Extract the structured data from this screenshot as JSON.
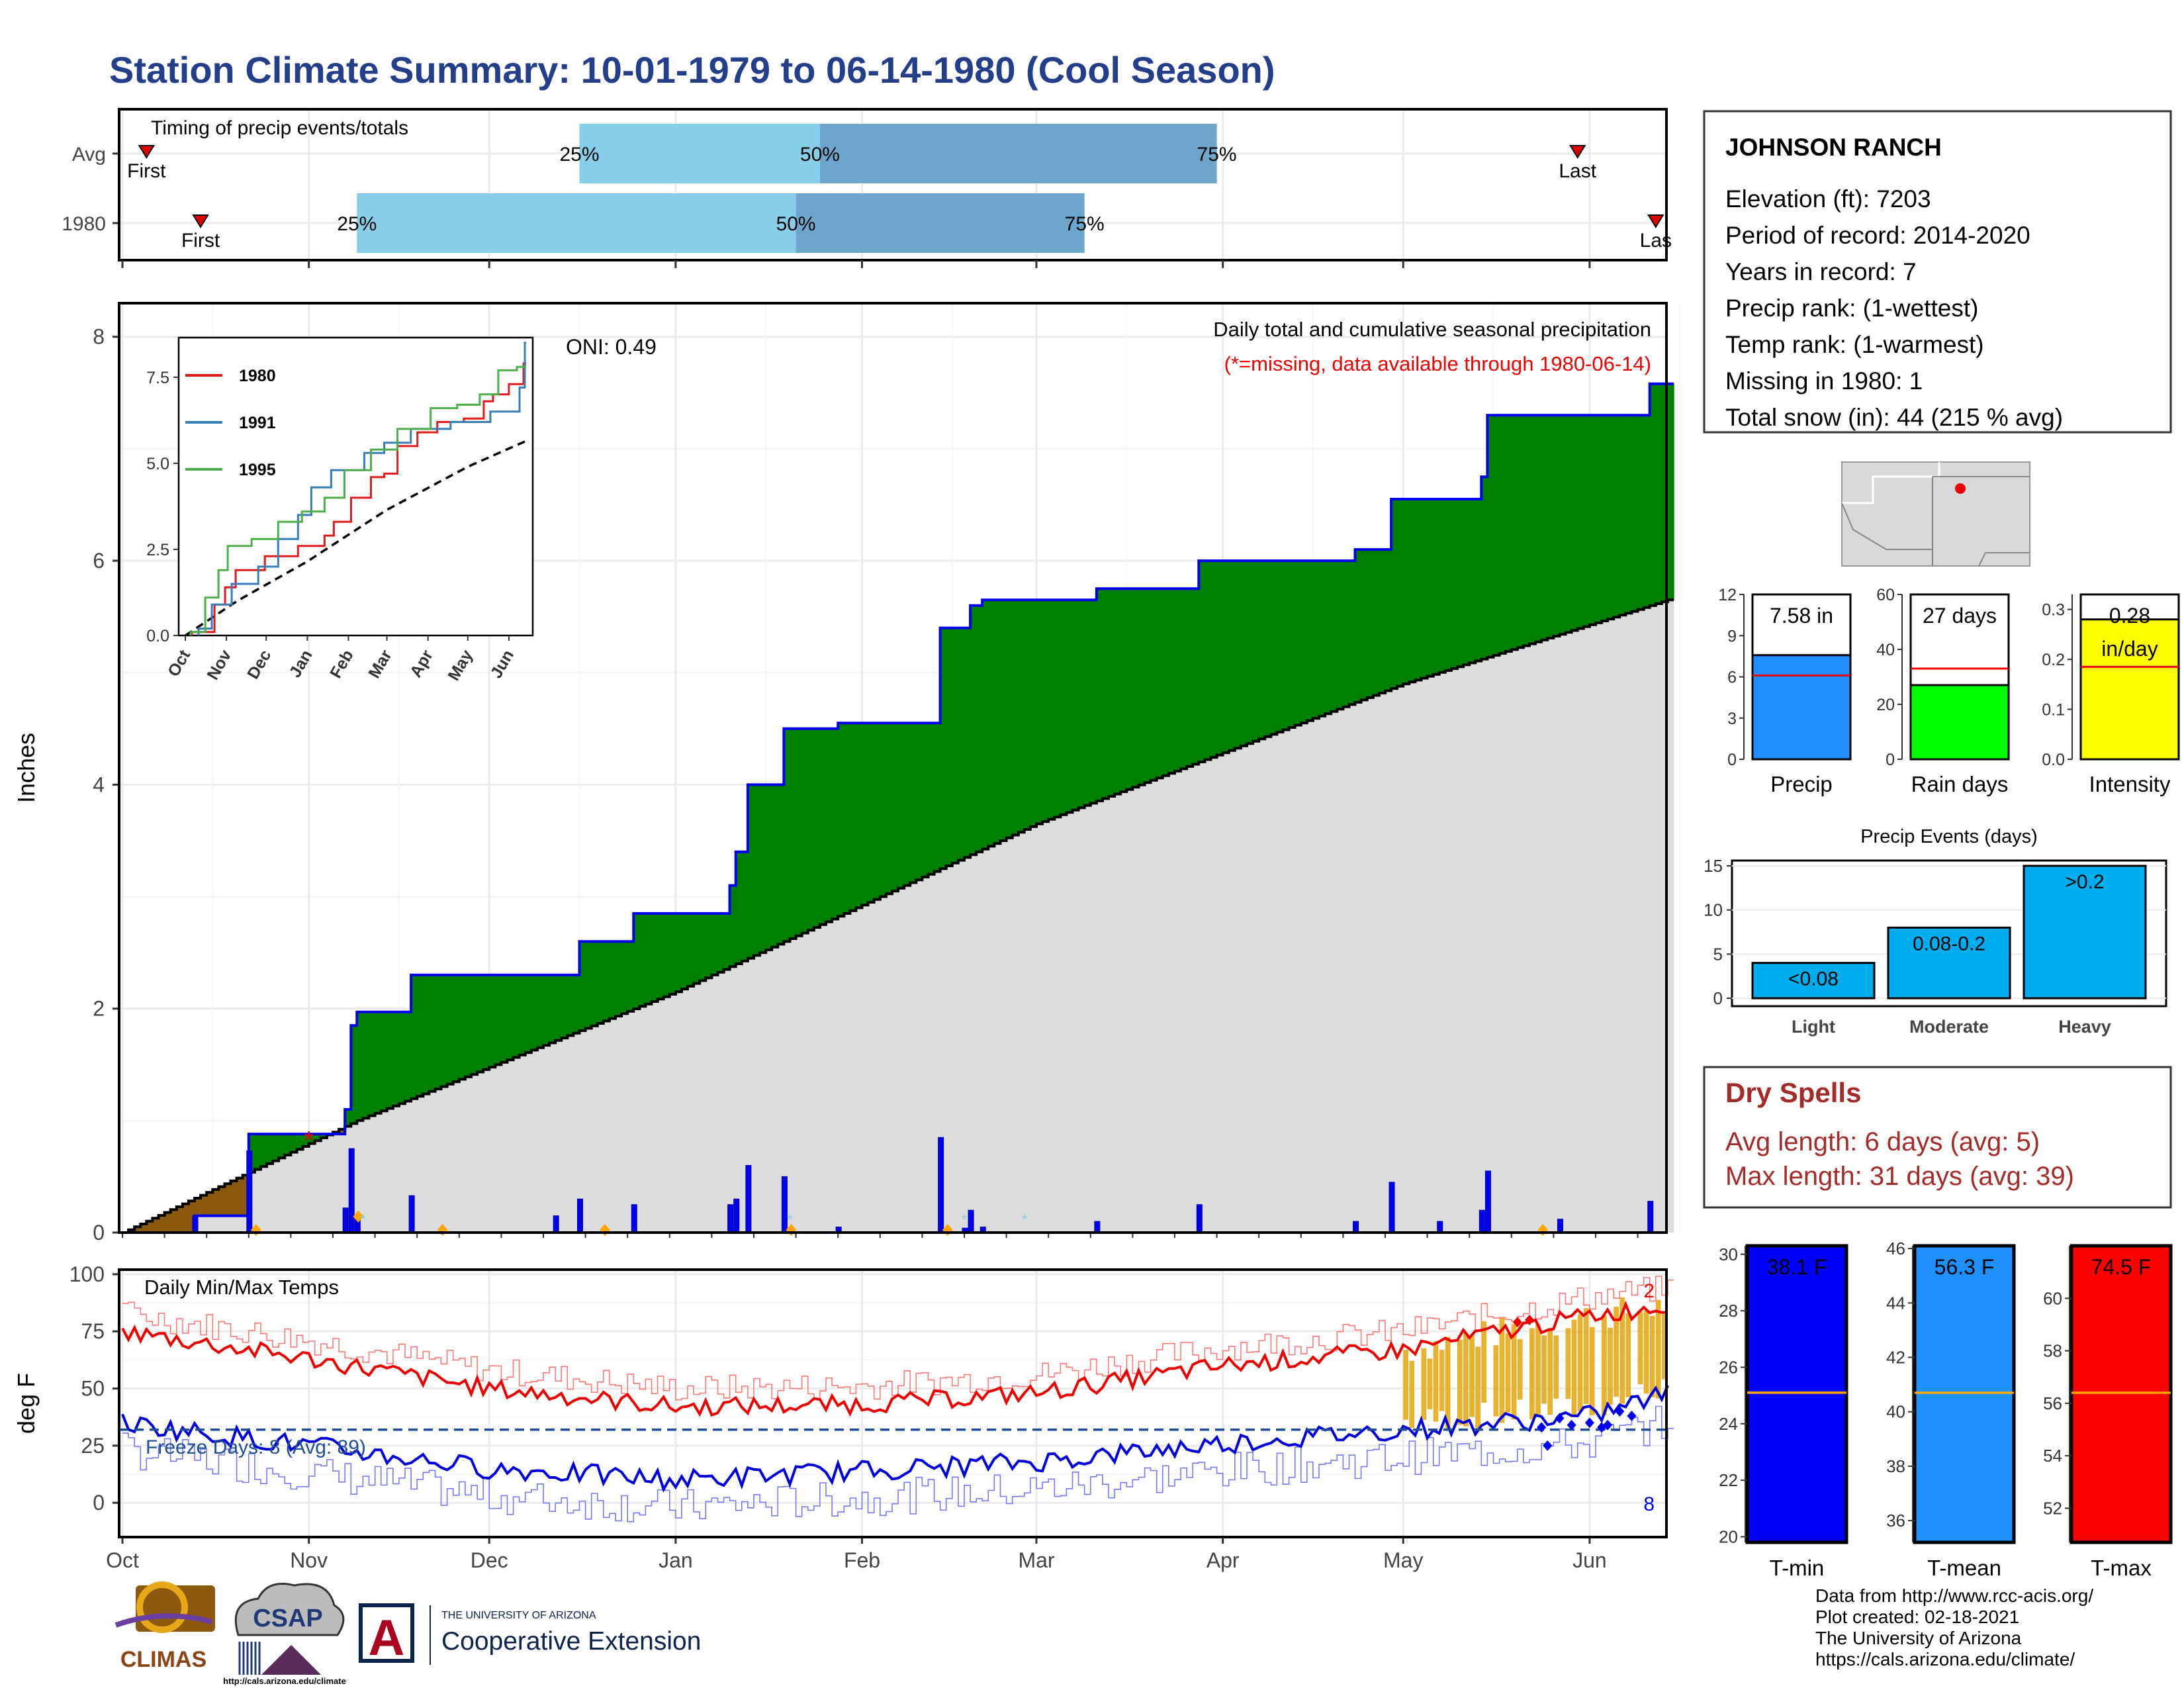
{
  "title": "Station Climate Summary: 10-01-1979 to 06-14-1980 (Cool Season)",
  "colors": {
    "title": "#233E8B",
    "dark_blue_bar": "#6CA6CD",
    "light_blue_bar": "#87CEEB",
    "green_fill": "#008000",
    "brown_fill": "#8B5A0F",
    "gray_fill": "#DDDDDD",
    "cum_line": "#0000EE",
    "red": "#EE0000",
    "dry_spells": "#A52A2A",
    "precip_bar": "#1E90FF",
    "rain_days_bar": "#00FF00",
    "intensity_bar": "#FFFF00",
    "events_bar": "#00AEEF",
    "tmin_bar": "#0000FF",
    "tmean_bar": "#1E90FF",
    "tmax_bar": "#FF0000",
    "orange": "#FFA500"
  },
  "timing": {
    "label": "Timing of precip events/totals",
    "rows": [
      {
        "name": "Avg",
        "first_label": "First",
        "last_label": "Last",
        "p25": "25%",
        "p50": "50%",
        "p75": "75%"
      },
      {
        "name": "1980",
        "first_label": "First",
        "last_label": "Las",
        "p25": "25%",
        "p50": "50%",
        "p75": "75%"
      }
    ]
  },
  "months": [
    "Oct",
    "Nov",
    "Dec",
    "Jan",
    "Feb",
    "Mar",
    "Apr",
    "May",
    "Jun"
  ],
  "main": {
    "ylabel": "Inches",
    "oni": "ONI: 0.49",
    "legend1": "Daily total and cumulative seasonal precipitation",
    "legend2": "(*=missing, data available through 1980-06-14)",
    "yticks": [
      "0",
      "2",
      "4",
      "6",
      "8"
    ]
  },
  "inset": {
    "legend": [
      "1980",
      "1991",
      "1995"
    ],
    "yticks": [
      "0.0",
      "2.5",
      "5.0",
      "7.5"
    ],
    "xticks": [
      "Oct",
      "Nov",
      "Dec",
      "Jan",
      "Feb",
      "Mar",
      "Apr",
      "May",
      "Jun"
    ]
  },
  "temps": {
    "label": "Daily Min/Max Temps",
    "ylabel": "deg F",
    "freeze": "Freeze Days: 8 (Avg: 89)",
    "yticks": [
      "0",
      "25",
      "50",
      "75",
      "100"
    ],
    "top_count": "2",
    "bottom_count": "8"
  },
  "station": {
    "name": "JOHNSON RANCH",
    "lines": [
      "Elevation (ft): 7203",
      "Period of record: 2014-2020",
      "Years in record: 7",
      "Precip rank:  (1-wettest)",
      "Temp rank:  (1-warmest)",
      "Missing in 1980: 1",
      "Total snow (in): 44 (215 % avg)"
    ]
  },
  "mini_bars": [
    {
      "label": "Precip",
      "value_text": "7.58 in",
      "value": 7.58,
      "avg": 6.1,
      "ymax": 12,
      "yticks": [
        "0",
        "3",
        "6",
        "9",
        "12"
      ]
    },
    {
      "label": "Rain days",
      "value_text": "27 days",
      "value": 27,
      "avg": 33,
      "ymax": 60,
      "yticks": [
        "0",
        "20",
        "40",
        "60"
      ]
    },
    {
      "label": "Intensity",
      "value_text": "0.28",
      "value_text2": "in/day",
      "value": 0.28,
      "avg": 0.185,
      "ymax": 0.33,
      "yticks": [
        "0.0",
        "0.1",
        "0.2",
        "0.3"
      ]
    }
  ],
  "events": {
    "title": "Precip Events (days)",
    "yticks": [
      "0",
      "5",
      "10",
      "15"
    ],
    "bars": [
      {
        "label": "Light",
        "text": "<0.08",
        "value": 4
      },
      {
        "label": "Moderate",
        "text": "0.08-0.2",
        "value": 8
      },
      {
        "label": "Heavy",
        "text": ">0.2",
        "value": 15
      }
    ]
  },
  "dry_spells": {
    "title": "Dry Spells",
    "avg": "Avg length: 6 days (avg: 5)",
    "max": "Max length: 31 days (avg: 39)"
  },
  "temp_bars": [
    {
      "label": "T-min",
      "text": "38.1 F",
      "avg": 25.1,
      "ymin": 19.8,
      "ymax": 30.3,
      "yticks": [
        "20",
        "22",
        "24",
        "26",
        "28",
        "30"
      ],
      "ytick_vals": [
        20,
        22,
        24,
        26,
        28,
        30
      ]
    },
    {
      "label": "T-mean",
      "text": "56.3 F",
      "avg": 40.7,
      "ymin": 35.2,
      "ymax": 46.1,
      "yticks": [
        "36",
        "38",
        "40",
        "42",
        "44",
        "46"
      ],
      "ytick_vals": [
        36,
        38,
        40,
        42,
        44,
        46
      ]
    },
    {
      "label": "T-max",
      "text": "74.5 F",
      "avg": 56.4,
      "ymin": 50.7,
      "ymax": 62.0,
      "yticks": [
        "52",
        "54",
        "56",
        "58",
        "60"
      ],
      "ytick_vals": [
        52,
        54,
        56,
        58,
        60
      ]
    }
  ],
  "credits": [
    "Data from http://www.rcc-acis.org/",
    "Plot created: 02-18-2021",
    "The University of Arizona",
    "https://cals.arizona.edu/climate/"
  ],
  "logos": {
    "climas": "CLIMAS",
    "csap": "CSAP",
    "csap_url": "http://cals.arizona.edu/climate",
    "ua_small": "THE UNIVERSITY OF ARIZONA",
    "ua_big": "Cooperative Extension"
  },
  "chart_data": [
    {
      "type": "bar",
      "title": "Timing of precip events/totals",
      "categories": [
        "Avg",
        "1980"
      ],
      "series": [
        {
          "name": "25%",
          "values": [
            "1979-12-16",
            "1979-11-09"
          ]
        },
        {
          "name": "50%",
          "values": [
            "1980-01-25",
            "1980-01-21"
          ]
        },
        {
          "name": "75%",
          "values": [
            "1980-03-31",
            "1980-03-09"
          ]
        },
        {
          "name": "First",
          "values": [
            "1979-10-05",
            "1979-10-14"
          ]
        },
        {
          "name": "Last",
          "values": [
            "1980-05-30",
            "1980-06-12"
          ]
        }
      ]
    },
    {
      "type": "area",
      "title": "Daily total and cumulative seasonal precipitation",
      "ylabel": "Inches",
      "ylim": [
        0,
        8.3
      ],
      "series": [
        {
          "name": "cumulative 1980",
          "x": [
            "1979-10-01",
            "1979-10-13",
            "1979-10-22",
            "1979-10-23",
            "1979-11-07",
            "1979-11-08",
            "1979-11-09",
            "1979-11-18",
            "1979-12-16",
            "1979-12-25",
            "1980-01-10",
            "1980-01-11",
            "1980-01-13",
            "1980-01-19",
            "1980-01-28",
            "1980-02-14",
            "1980-02-19",
            "1980-02-21",
            "1980-02-22",
            "1980-03-11",
            "1980-03-28",
            "1980-04-23",
            "1980-04-29",
            "1980-05-14",
            "1980-05-15",
            "1980-06-11",
            "1980-06-14"
          ],
          "values": [
            0.0,
            0.15,
            0.88,
            0.88,
            1.1,
            1.85,
            1.97,
            2.3,
            2.6,
            2.85,
            3.1,
            3.4,
            4.0,
            4.5,
            4.55,
            5.4,
            5.6,
            5.65,
            5.65,
            5.75,
            6.0,
            6.1,
            6.55,
            6.75,
            7.3,
            7.58,
            7.58
          ]
        },
        {
          "name": "average cumulative",
          "x": [
            "1979-10-01",
            "1979-11-09",
            "1980-01-01",
            "1980-03-01",
            "1980-05-01",
            "1980-06-14"
          ],
          "values": [
            0.0,
            1.0,
            2.15,
            3.65,
            4.9,
            5.65
          ]
        }
      ]
    },
    {
      "type": "line",
      "title": "Daily Min/Max Temps",
      "ylabel": "deg F",
      "ylim": [
        -20,
        100
      ],
      "series": [
        {
          "name": "Tmax 1980",
          "x": [
            "Oct 1",
            "Nov 1",
            "Dec 1",
            "Jan 1",
            "Feb 1",
            "Mar 1",
            "Apr 1",
            "May 1",
            "Jun 1",
            "Jun 14"
          ],
          "values": [
            75,
            63,
            50,
            42,
            43,
            48,
            60,
            67,
            82,
            86
          ]
        },
        {
          "name": "Tmin 1980",
          "x": [
            "Oct 1",
            "Nov 1",
            "Dec 1",
            "Jan 1",
            "Feb 1",
            "Mar 1",
            "Apr 1",
            "May 1",
            "Jun 1",
            "Jun 14"
          ],
          "values": [
            35,
            25,
            15,
            10,
            14,
            18,
            26,
            32,
            38,
            48
          ]
        }
      ]
    }
  ]
}
